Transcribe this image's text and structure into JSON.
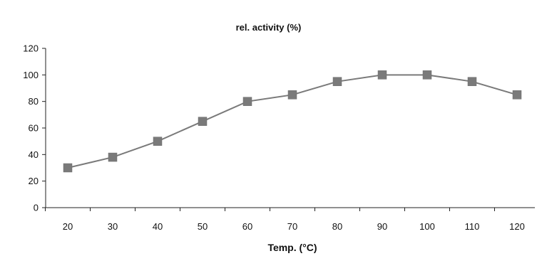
{
  "chart_data": {
    "type": "line",
    "title": "rel. activity (%)",
    "xlabel": "Temp. (°C)",
    "ylabel": "",
    "x": [
      20,
      30,
      40,
      50,
      60,
      70,
      80,
      90,
      100,
      110,
      120
    ],
    "series": [
      {
        "values": [
          30,
          38,
          50,
          65,
          80,
          85,
          95,
          100,
          100,
          95,
          85
        ]
      }
    ],
    "ylim": [
      0,
      120
    ],
    "yticks": [
      0,
      20,
      40,
      60,
      80,
      100,
      120
    ],
    "xticks": [
      "20",
      "30",
      "40",
      "50",
      "60",
      "70",
      "80",
      "90",
      "100",
      "110",
      "120"
    ],
    "grid": false,
    "colors": {
      "line": "#7a7a7a",
      "marker": "#7a7a7a",
      "axis": "#222222"
    }
  }
}
